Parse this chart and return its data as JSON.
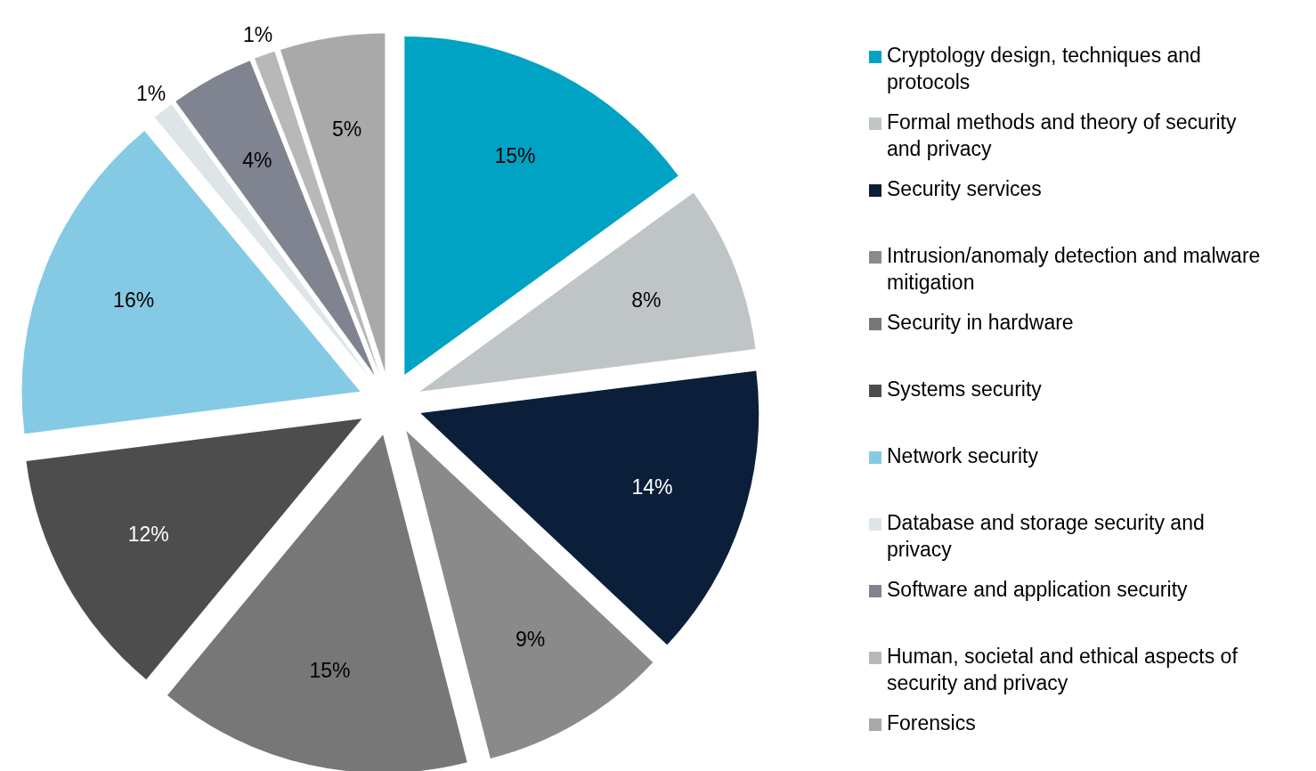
{
  "chart_data": {
    "type": "pie",
    "categories": [
      "Cryptology design, techniques and protocols",
      "Formal methods and theory of security and privacy",
      "Security services",
      "Intrusion/anomaly detection and malware mitigation",
      "Security in hardware",
      "Systems security",
      "Network security",
      "Database and storage security and privacy",
      "Software and application security",
      "Human, societal and ethical aspects of security and privacy",
      "Forensics"
    ],
    "values": [
      15,
      8,
      14,
      9,
      15,
      12,
      16,
      1,
      4,
      1,
      5
    ],
    "colors": [
      "#00a3c4",
      "#bfc5c7",
      "#0b1f3a",
      "#8a8a8a",
      "#777777",
      "#4d4d4d",
      "#85cae4",
      "#dde5e8",
      "#7f8490",
      "#b8b8b8",
      "#a9a9a9"
    ],
    "value_labels": [
      "15%",
      "8%",
      "14%",
      "9%",
      "15%",
      "12%",
      "16%",
      "1%",
      "4%",
      "1%",
      "5%"
    ],
    "legend": "right"
  }
}
